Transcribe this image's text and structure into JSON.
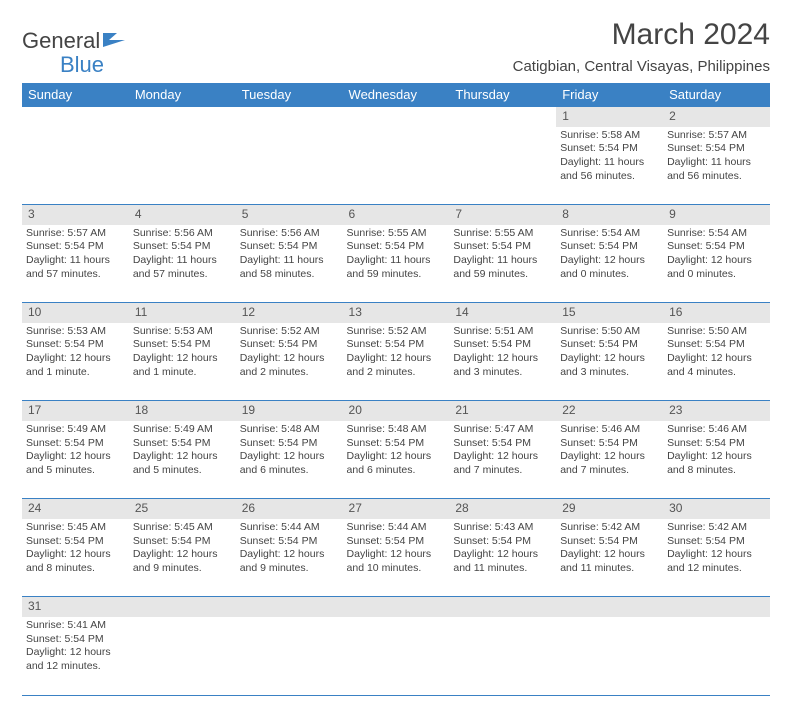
{
  "colors": {
    "accent": "#3a81c4",
    "header_bg": "#3a81c4",
    "header_text": "#ffffff",
    "daynum_bg": "#e6e6e6",
    "border": "#3a81c4",
    "text": "#444444",
    "logo_dark": "#444444",
    "logo_blue": "#3a81c4",
    "background": "#ffffff"
  },
  "typography": {
    "title_fontsize": 30,
    "location_fontsize": 15,
    "header_fontsize": 13,
    "daynum_fontsize": 12,
    "cell_fontsize": 10.5,
    "logo_fontsize": 22
  },
  "logo": {
    "part1": "General",
    "part2": "Blue"
  },
  "title": "March 2024",
  "location": "Catigbian, Central Visayas, Philippines",
  "weekdays": [
    "Sunday",
    "Monday",
    "Tuesday",
    "Wednesday",
    "Thursday",
    "Friday",
    "Saturday"
  ],
  "grid": {
    "first_weekday_index": 5,
    "days_in_month": 31
  },
  "days": {
    "1": {
      "sunrise": "5:58 AM",
      "sunset": "5:54 PM",
      "daylight": "11 hours and 56 minutes."
    },
    "2": {
      "sunrise": "5:57 AM",
      "sunset": "5:54 PM",
      "daylight": "11 hours and 56 minutes."
    },
    "3": {
      "sunrise": "5:57 AM",
      "sunset": "5:54 PM",
      "daylight": "11 hours and 57 minutes."
    },
    "4": {
      "sunrise": "5:56 AM",
      "sunset": "5:54 PM",
      "daylight": "11 hours and 57 minutes."
    },
    "5": {
      "sunrise": "5:56 AM",
      "sunset": "5:54 PM",
      "daylight": "11 hours and 58 minutes."
    },
    "6": {
      "sunrise": "5:55 AM",
      "sunset": "5:54 PM",
      "daylight": "11 hours and 59 minutes."
    },
    "7": {
      "sunrise": "5:55 AM",
      "sunset": "5:54 PM",
      "daylight": "11 hours and 59 minutes."
    },
    "8": {
      "sunrise": "5:54 AM",
      "sunset": "5:54 PM",
      "daylight": "12 hours and 0 minutes."
    },
    "9": {
      "sunrise": "5:54 AM",
      "sunset": "5:54 PM",
      "daylight": "12 hours and 0 minutes."
    },
    "10": {
      "sunrise": "5:53 AM",
      "sunset": "5:54 PM",
      "daylight": "12 hours and 1 minute."
    },
    "11": {
      "sunrise": "5:53 AM",
      "sunset": "5:54 PM",
      "daylight": "12 hours and 1 minute."
    },
    "12": {
      "sunrise": "5:52 AM",
      "sunset": "5:54 PM",
      "daylight": "12 hours and 2 minutes."
    },
    "13": {
      "sunrise": "5:52 AM",
      "sunset": "5:54 PM",
      "daylight": "12 hours and 2 minutes."
    },
    "14": {
      "sunrise": "5:51 AM",
      "sunset": "5:54 PM",
      "daylight": "12 hours and 3 minutes."
    },
    "15": {
      "sunrise": "5:50 AM",
      "sunset": "5:54 PM",
      "daylight": "12 hours and 3 minutes."
    },
    "16": {
      "sunrise": "5:50 AM",
      "sunset": "5:54 PM",
      "daylight": "12 hours and 4 minutes."
    },
    "17": {
      "sunrise": "5:49 AM",
      "sunset": "5:54 PM",
      "daylight": "12 hours and 5 minutes."
    },
    "18": {
      "sunrise": "5:49 AM",
      "sunset": "5:54 PM",
      "daylight": "12 hours and 5 minutes."
    },
    "19": {
      "sunrise": "5:48 AM",
      "sunset": "5:54 PM",
      "daylight": "12 hours and 6 minutes."
    },
    "20": {
      "sunrise": "5:48 AM",
      "sunset": "5:54 PM",
      "daylight": "12 hours and 6 minutes."
    },
    "21": {
      "sunrise": "5:47 AM",
      "sunset": "5:54 PM",
      "daylight": "12 hours and 7 minutes."
    },
    "22": {
      "sunrise": "5:46 AM",
      "sunset": "5:54 PM",
      "daylight": "12 hours and 7 minutes."
    },
    "23": {
      "sunrise": "5:46 AM",
      "sunset": "5:54 PM",
      "daylight": "12 hours and 8 minutes."
    },
    "24": {
      "sunrise": "5:45 AM",
      "sunset": "5:54 PM",
      "daylight": "12 hours and 8 minutes."
    },
    "25": {
      "sunrise": "5:45 AM",
      "sunset": "5:54 PM",
      "daylight": "12 hours and 9 minutes."
    },
    "26": {
      "sunrise": "5:44 AM",
      "sunset": "5:54 PM",
      "daylight": "12 hours and 9 minutes."
    },
    "27": {
      "sunrise": "5:44 AM",
      "sunset": "5:54 PM",
      "daylight": "12 hours and 10 minutes."
    },
    "28": {
      "sunrise": "5:43 AM",
      "sunset": "5:54 PM",
      "daylight": "12 hours and 11 minutes."
    },
    "29": {
      "sunrise": "5:42 AM",
      "sunset": "5:54 PM",
      "daylight": "12 hours and 11 minutes."
    },
    "30": {
      "sunrise": "5:42 AM",
      "sunset": "5:54 PM",
      "daylight": "12 hours and 12 minutes."
    },
    "31": {
      "sunrise": "5:41 AM",
      "sunset": "5:54 PM",
      "daylight": "12 hours and 12 minutes."
    }
  },
  "labels": {
    "sunrise_prefix": "Sunrise: ",
    "sunset_prefix": "Sunset: ",
    "daylight_prefix": "Daylight: "
  }
}
